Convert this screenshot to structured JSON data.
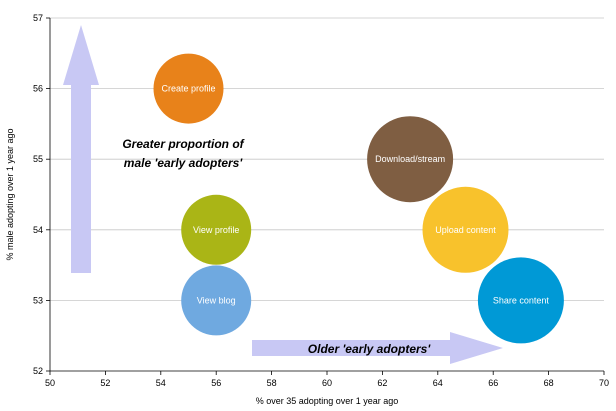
{
  "chart_data": {
    "type": "scatter",
    "title": "",
    "xlabel": "% over 35 adopting over 1 year ago",
    "ylabel": "% male adopting over 1 year ago",
    "xlim": [
      50,
      70
    ],
    "ylim": [
      52,
      57
    ],
    "x_ticks": [
      50,
      52,
      54,
      56,
      58,
      60,
      62,
      64,
      66,
      68,
      70
    ],
    "y_ticks": [
      52,
      53,
      54,
      55,
      56,
      57
    ],
    "grid": "horizontal",
    "legend": "none",
    "points": [
      {
        "label": "Create profile",
        "x": 55,
        "y": 56,
        "color": "#E8821A",
        "size": "medium",
        "text_color": "#ffffff"
      },
      {
        "label": "View profile",
        "x": 56,
        "y": 54,
        "color": "#AAB516",
        "size": "medium",
        "text_color": "#ffffff"
      },
      {
        "label": "View blog",
        "x": 56,
        "y": 53,
        "color": "#6FA9E0",
        "size": "medium",
        "text_color": "#ffffff"
      },
      {
        "label": "Download/stream",
        "x": 63,
        "y": 55,
        "color": "#7F5E42",
        "size": "large",
        "text_color": "#ffffff"
      },
      {
        "label": "Upload content",
        "x": 65,
        "y": 54,
        "color": "#F8C22C",
        "size": "large",
        "text_color": "#ffffff"
      },
      {
        "label": "Share content",
        "x": 67,
        "y": 53,
        "color": "#0099D6",
        "size": "large",
        "text_color": "#ffffff"
      }
    ],
    "annotations": [
      {
        "id": "male",
        "lines": [
          "Greater proportion of",
          "male 'early adopters'"
        ],
        "arrow": "up"
      },
      {
        "id": "older",
        "lines": [
          "Older 'early adopters'"
        ],
        "arrow": "right"
      }
    ],
    "arrow_color": "#C8C8F4"
  }
}
